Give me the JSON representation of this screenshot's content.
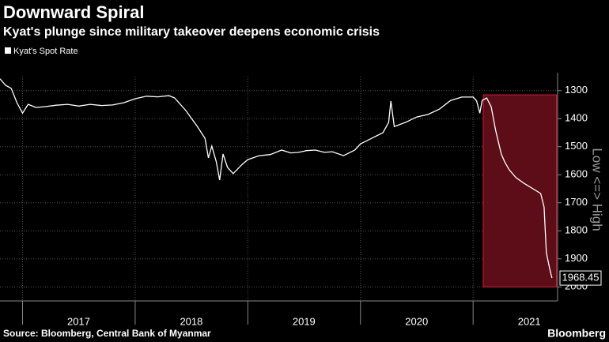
{
  "chart_data": {
    "type": "line",
    "title": "Downward Spiral",
    "subtitle": "Kyat's plunge since military takeover deepens economic crisis",
    "y_axis_note": "Low <=> High",
    "source": "Source: Bloomberg, Central Bank of Myanmar",
    "logo": "Bloomberg",
    "inverted_y": true,
    "grid": true,
    "xlim": [
      2016.8,
      2021.75
    ],
    "xticks": [
      2017,
      2018,
      2019,
      2020,
      2021
    ],
    "ylim": [
      1250,
      2050
    ],
    "yticks": [
      1300,
      1400,
      1500,
      1600,
      1700,
      1800,
      1900,
      2000
    ],
    "highlight": {
      "x": [
        2021.09,
        2021.74
      ],
      "y": [
        1315,
        2000
      ],
      "color": "#5c0d18"
    },
    "x": [
      2016.8,
      2016.85,
      2016.9,
      2016.95,
      2017.0,
      2017.05,
      2017.12,
      2017.2,
      2017.3,
      2017.4,
      2017.5,
      2017.6,
      2017.7,
      2017.8,
      2017.9,
      2018.0,
      2018.1,
      2018.2,
      2018.3,
      2018.35,
      2018.45,
      2018.55,
      2018.62,
      2018.65,
      2018.68,
      2018.72,
      2018.75,
      2018.78,
      2018.82,
      2018.87,
      2018.95,
      2019.0,
      2019.1,
      2019.2,
      2019.3,
      2019.38,
      2019.45,
      2019.52,
      2019.6,
      2019.68,
      2019.75,
      2019.85,
      2019.95,
      2020.0,
      2020.1,
      2020.2,
      2020.25,
      2020.27,
      2020.3,
      2020.4,
      2020.5,
      2020.6,
      2020.7,
      2020.8,
      2020.9,
      2021.0,
      2021.03,
      2021.06,
      2021.08,
      2021.12,
      2021.16,
      2021.2,
      2021.25,
      2021.28,
      2021.32,
      2021.38,
      2021.45,
      2021.52,
      2021.6,
      2021.63,
      2021.65,
      2021.68,
      2021.7
    ],
    "series": [
      {
        "name": "Kyat's Spot Rate",
        "color": "#ffffff",
        "values": [
          1258,
          1281,
          1292,
          1343,
          1380,
          1349,
          1360,
          1357,
          1352,
          1349,
          1355,
          1349,
          1353,
          1351,
          1343,
          1329,
          1320,
          1322,
          1318,
          1326,
          1371,
          1427,
          1470,
          1540,
          1498,
          1554,
          1619,
          1526,
          1574,
          1596,
          1563,
          1546,
          1532,
          1528,
          1512,
          1522,
          1520,
          1514,
          1512,
          1520,
          1518,
          1532,
          1512,
          1490,
          1470,
          1450,
          1413,
          1337,
          1428,
          1413,
          1394,
          1385,
          1366,
          1335,
          1323,
          1323,
          1336,
          1380,
          1335,
          1326,
          1357,
          1442,
          1526,
          1554,
          1582,
          1610,
          1630,
          1647,
          1667,
          1715,
          1878,
          1935,
          1968.45
        ]
      }
    ]
  }
}
